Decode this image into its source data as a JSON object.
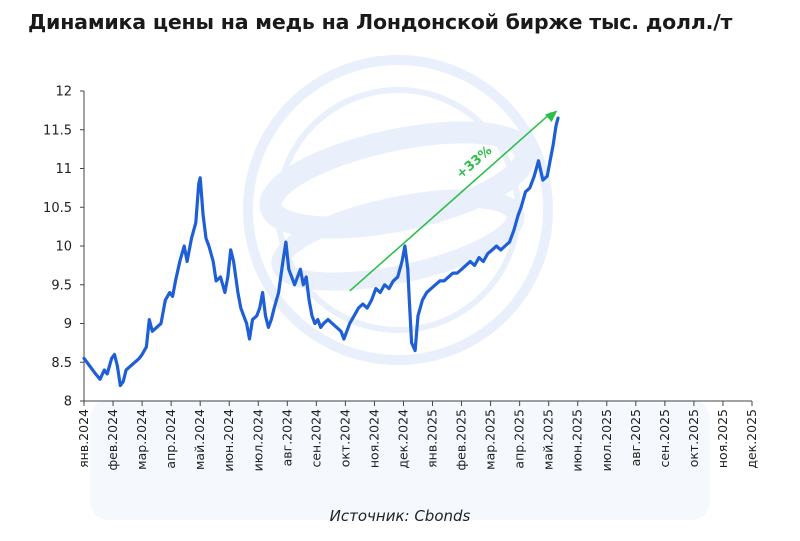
{
  "title": "Динамика цены на медь на Лондонской бирже тыс. долл./т",
  "source": "Источник: Cbonds",
  "chart_data": {
    "type": "line",
    "title": "Динамика цены на медь на Лондонской бирже тыс. долл./т",
    "xlabel": "",
    "ylabel": "",
    "ylim": [
      8,
      12
    ],
    "yticks": [
      "8",
      "8.5",
      "9",
      "9.5",
      "10",
      "10.5",
      "11",
      "11.5",
      "12"
    ],
    "xticks": [
      "янв.2024",
      "фев.2024",
      "мар.2024",
      "апр.2024",
      "май.2024",
      "июн.2024",
      "июл.2024",
      "авг.2024",
      "сен.2024",
      "окт.2024",
      "ноя.2024",
      "дек.2024",
      "янв.2025",
      "фев.2025",
      "мар.2025",
      "апр.2025",
      "май.2025",
      "июн.2025",
      "июл.2025",
      "авг.2025",
      "сен.2025",
      "окт.2025",
      "ноя.2025",
      "дек.2025"
    ],
    "grid": false,
    "line_color": "#1f5fd6",
    "series": [
      {
        "points": [
          [
            0.0,
            8.55
          ],
          [
            0.2,
            8.45
          ],
          [
            0.4,
            8.35
          ],
          [
            0.55,
            8.28
          ],
          [
            0.7,
            8.4
          ],
          [
            0.8,
            8.35
          ],
          [
            0.95,
            8.55
          ],
          [
            1.05,
            8.6
          ],
          [
            1.15,
            8.45
          ],
          [
            1.25,
            8.2
          ],
          [
            1.35,
            8.25
          ],
          [
            1.45,
            8.4
          ],
          [
            1.6,
            8.45
          ],
          [
            1.75,
            8.5
          ],
          [
            1.9,
            8.55
          ],
          [
            2.0,
            8.6
          ],
          [
            2.15,
            8.7
          ],
          [
            2.25,
            9.05
          ],
          [
            2.35,
            8.9
          ],
          [
            2.5,
            8.95
          ],
          [
            2.65,
            9.0
          ],
          [
            2.8,
            9.3
          ],
          [
            2.95,
            9.4
          ],
          [
            3.05,
            9.35
          ],
          [
            3.15,
            9.55
          ],
          [
            3.3,
            9.8
          ],
          [
            3.45,
            10.0
          ],
          [
            3.55,
            9.8
          ],
          [
            3.7,
            10.1
          ],
          [
            3.85,
            10.3
          ],
          [
            3.95,
            10.8
          ],
          [
            4.0,
            10.88
          ],
          [
            4.1,
            10.4
          ],
          [
            4.2,
            10.1
          ],
          [
            4.3,
            10.0
          ],
          [
            4.45,
            9.8
          ],
          [
            4.55,
            9.55
          ],
          [
            4.7,
            9.6
          ],
          [
            4.85,
            9.4
          ],
          [
            4.95,
            9.6
          ],
          [
            5.05,
            9.95
          ],
          [
            5.15,
            9.8
          ],
          [
            5.3,
            9.4
          ],
          [
            5.4,
            9.2
          ],
          [
            5.5,
            9.1
          ],
          [
            5.6,
            9.0
          ],
          [
            5.7,
            8.8
          ],
          [
            5.8,
            9.05
          ],
          [
            5.95,
            9.1
          ],
          [
            6.05,
            9.2
          ],
          [
            6.15,
            9.4
          ],
          [
            6.25,
            9.1
          ],
          [
            6.35,
            8.95
          ],
          [
            6.45,
            9.05
          ],
          [
            6.55,
            9.2
          ],
          [
            6.7,
            9.4
          ],
          [
            6.85,
            9.8
          ],
          [
            6.95,
            10.05
          ],
          [
            7.05,
            9.7
          ],
          [
            7.15,
            9.6
          ],
          [
            7.25,
            9.5
          ],
          [
            7.35,
            9.6
          ],
          [
            7.45,
            9.7
          ],
          [
            7.55,
            9.5
          ],
          [
            7.65,
            9.6
          ],
          [
            7.75,
            9.3
          ],
          [
            7.85,
            9.1
          ],
          [
            7.95,
            9.0
          ],
          [
            8.05,
            9.05
          ],
          [
            8.15,
            8.95
          ],
          [
            8.25,
            9.0
          ],
          [
            8.4,
            9.05
          ],
          [
            8.55,
            9.0
          ],
          [
            8.7,
            8.95
          ],
          [
            8.85,
            8.9
          ],
          [
            8.95,
            8.8
          ],
          [
            9.05,
            8.9
          ],
          [
            9.15,
            9.0
          ],
          [
            9.3,
            9.1
          ],
          [
            9.45,
            9.2
          ],
          [
            9.6,
            9.25
          ],
          [
            9.75,
            9.2
          ],
          [
            9.9,
            9.3
          ],
          [
            10.05,
            9.45
          ],
          [
            10.2,
            9.4
          ],
          [
            10.35,
            9.5
          ],
          [
            10.5,
            9.45
          ],
          [
            10.65,
            9.55
          ],
          [
            10.8,
            9.6
          ],
          [
            10.95,
            9.8
          ],
          [
            11.05,
            10.0
          ],
          [
            11.15,
            9.7
          ],
          [
            11.2,
            9.3
          ],
          [
            11.28,
            8.75
          ],
          [
            11.4,
            8.65
          ],
          [
            11.5,
            9.1
          ],
          [
            11.65,
            9.3
          ],
          [
            11.8,
            9.4
          ],
          [
            11.95,
            9.45
          ],
          [
            12.1,
            9.5
          ],
          [
            12.25,
            9.55
          ],
          [
            12.4,
            9.55
          ],
          [
            12.55,
            9.6
          ],
          [
            12.7,
            9.65
          ],
          [
            12.85,
            9.65
          ],
          [
            13.0,
            9.7
          ],
          [
            13.15,
            9.75
          ],
          [
            13.3,
            9.8
          ],
          [
            13.45,
            9.75
          ],
          [
            13.6,
            9.85
          ],
          [
            13.75,
            9.8
          ],
          [
            13.9,
            9.9
          ],
          [
            14.05,
            9.95
          ],
          [
            14.2,
            10.0
          ],
          [
            14.35,
            9.95
          ],
          [
            14.5,
            10.0
          ],
          [
            14.65,
            10.05
          ],
          [
            14.8,
            10.2
          ],
          [
            14.95,
            10.4
          ],
          [
            15.05,
            10.5
          ],
          [
            15.2,
            10.7
          ],
          [
            15.35,
            10.75
          ],
          [
            15.5,
            10.9
          ],
          [
            15.65,
            11.1
          ],
          [
            15.8,
            10.85
          ],
          [
            15.95,
            10.9
          ],
          [
            16.05,
            11.1
          ],
          [
            16.15,
            11.3
          ],
          [
            16.25,
            11.55
          ],
          [
            16.32,
            11.65
          ]
        ]
      }
    ],
    "annotation": {
      "text": "+33%",
      "color": "#2bbf4a",
      "arrow_from": [
        9.15,
        9.42
      ],
      "arrow_to": [
        16.3,
        11.75
      ]
    }
  }
}
